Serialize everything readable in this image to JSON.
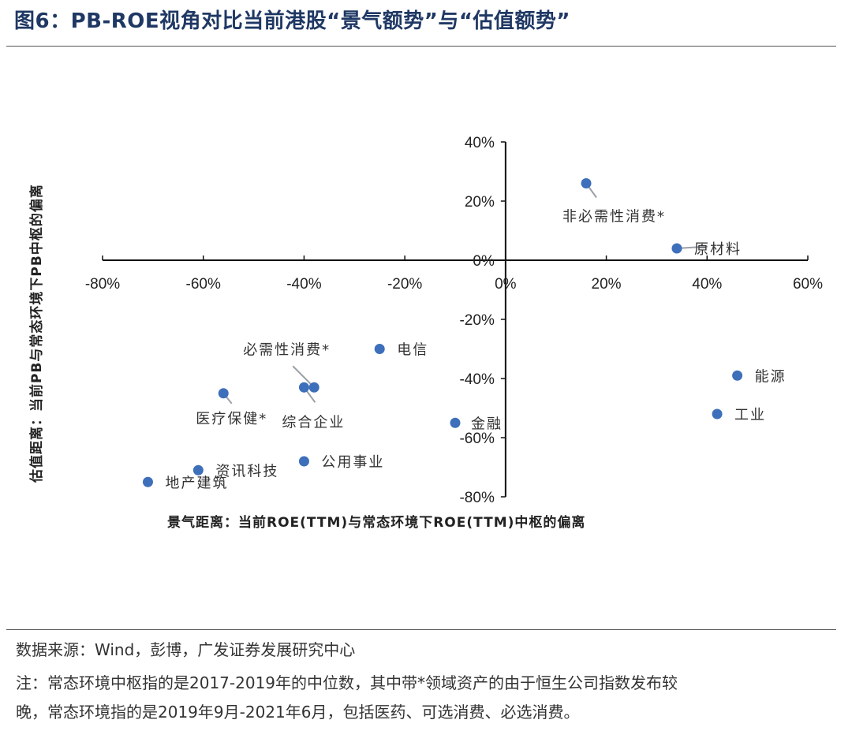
{
  "figure": {
    "title": "图6：PB-ROE视角对比当前港股“景气额势”与“估值额势”",
    "source": "数据来源：Wind，彭博，广发证券发展研究中心",
    "note_line1": "注：常态环境中枢指的是2017-2019年的中位数，其中带*领域资产的由于恒生公司指数发布较",
    "note_line2": "晚，常态环境指的是2019年9月-2021年6月，包括医药、可选消费、必选消费。"
  },
  "chart_data": {
    "type": "scatter",
    "title": "",
    "xlabel": "景气距离：当前ROE(TTM)与常态环境下ROE(TTM)中枢的偏离",
    "ylabel": "估值距离：当前PB与常态环境下PB中枢的偏离",
    "xlim": [
      -80,
      60
    ],
    "ylim": [
      -80,
      40
    ],
    "x_ticks": [
      -80,
      -60,
      -40,
      -20,
      0,
      20,
      40,
      60
    ],
    "y_ticks": [
      40,
      20,
      0,
      -20,
      -40,
      -60,
      -80
    ],
    "x_tick_labels": [
      "-80%",
      "-60%",
      "-40%",
      "-20%",
      "0%",
      "20%",
      "40%",
      "60%"
    ],
    "y_tick_labels": [
      "40%",
      "20%",
      "0%",
      "-20%",
      "-40%",
      "-60%",
      "-80%"
    ],
    "marker_color": "#3d6fba",
    "points": [
      {
        "name": "非必需性消费*",
        "x": 16,
        "y": 26
      },
      {
        "name": "原材料",
        "x": 34,
        "y": 4
      },
      {
        "name": "电信",
        "x": -25,
        "y": -30
      },
      {
        "name": "必需性消费*",
        "x": -38,
        "y": -43
      },
      {
        "name": "综合企业",
        "x": -40,
        "y": -43
      },
      {
        "name": "医疗保健*",
        "x": -56,
        "y": -45
      },
      {
        "name": "金融",
        "x": -10,
        "y": -55
      },
      {
        "name": "公用事业",
        "x": -40,
        "y": -68
      },
      {
        "name": "资讯科技",
        "x": -61,
        "y": -71
      },
      {
        "name": "地产建筑",
        "x": -71,
        "y": -75
      },
      {
        "name": "能源",
        "x": 46,
        "y": -39
      },
      {
        "name": "工业",
        "x": 42,
        "y": -52
      }
    ]
  }
}
